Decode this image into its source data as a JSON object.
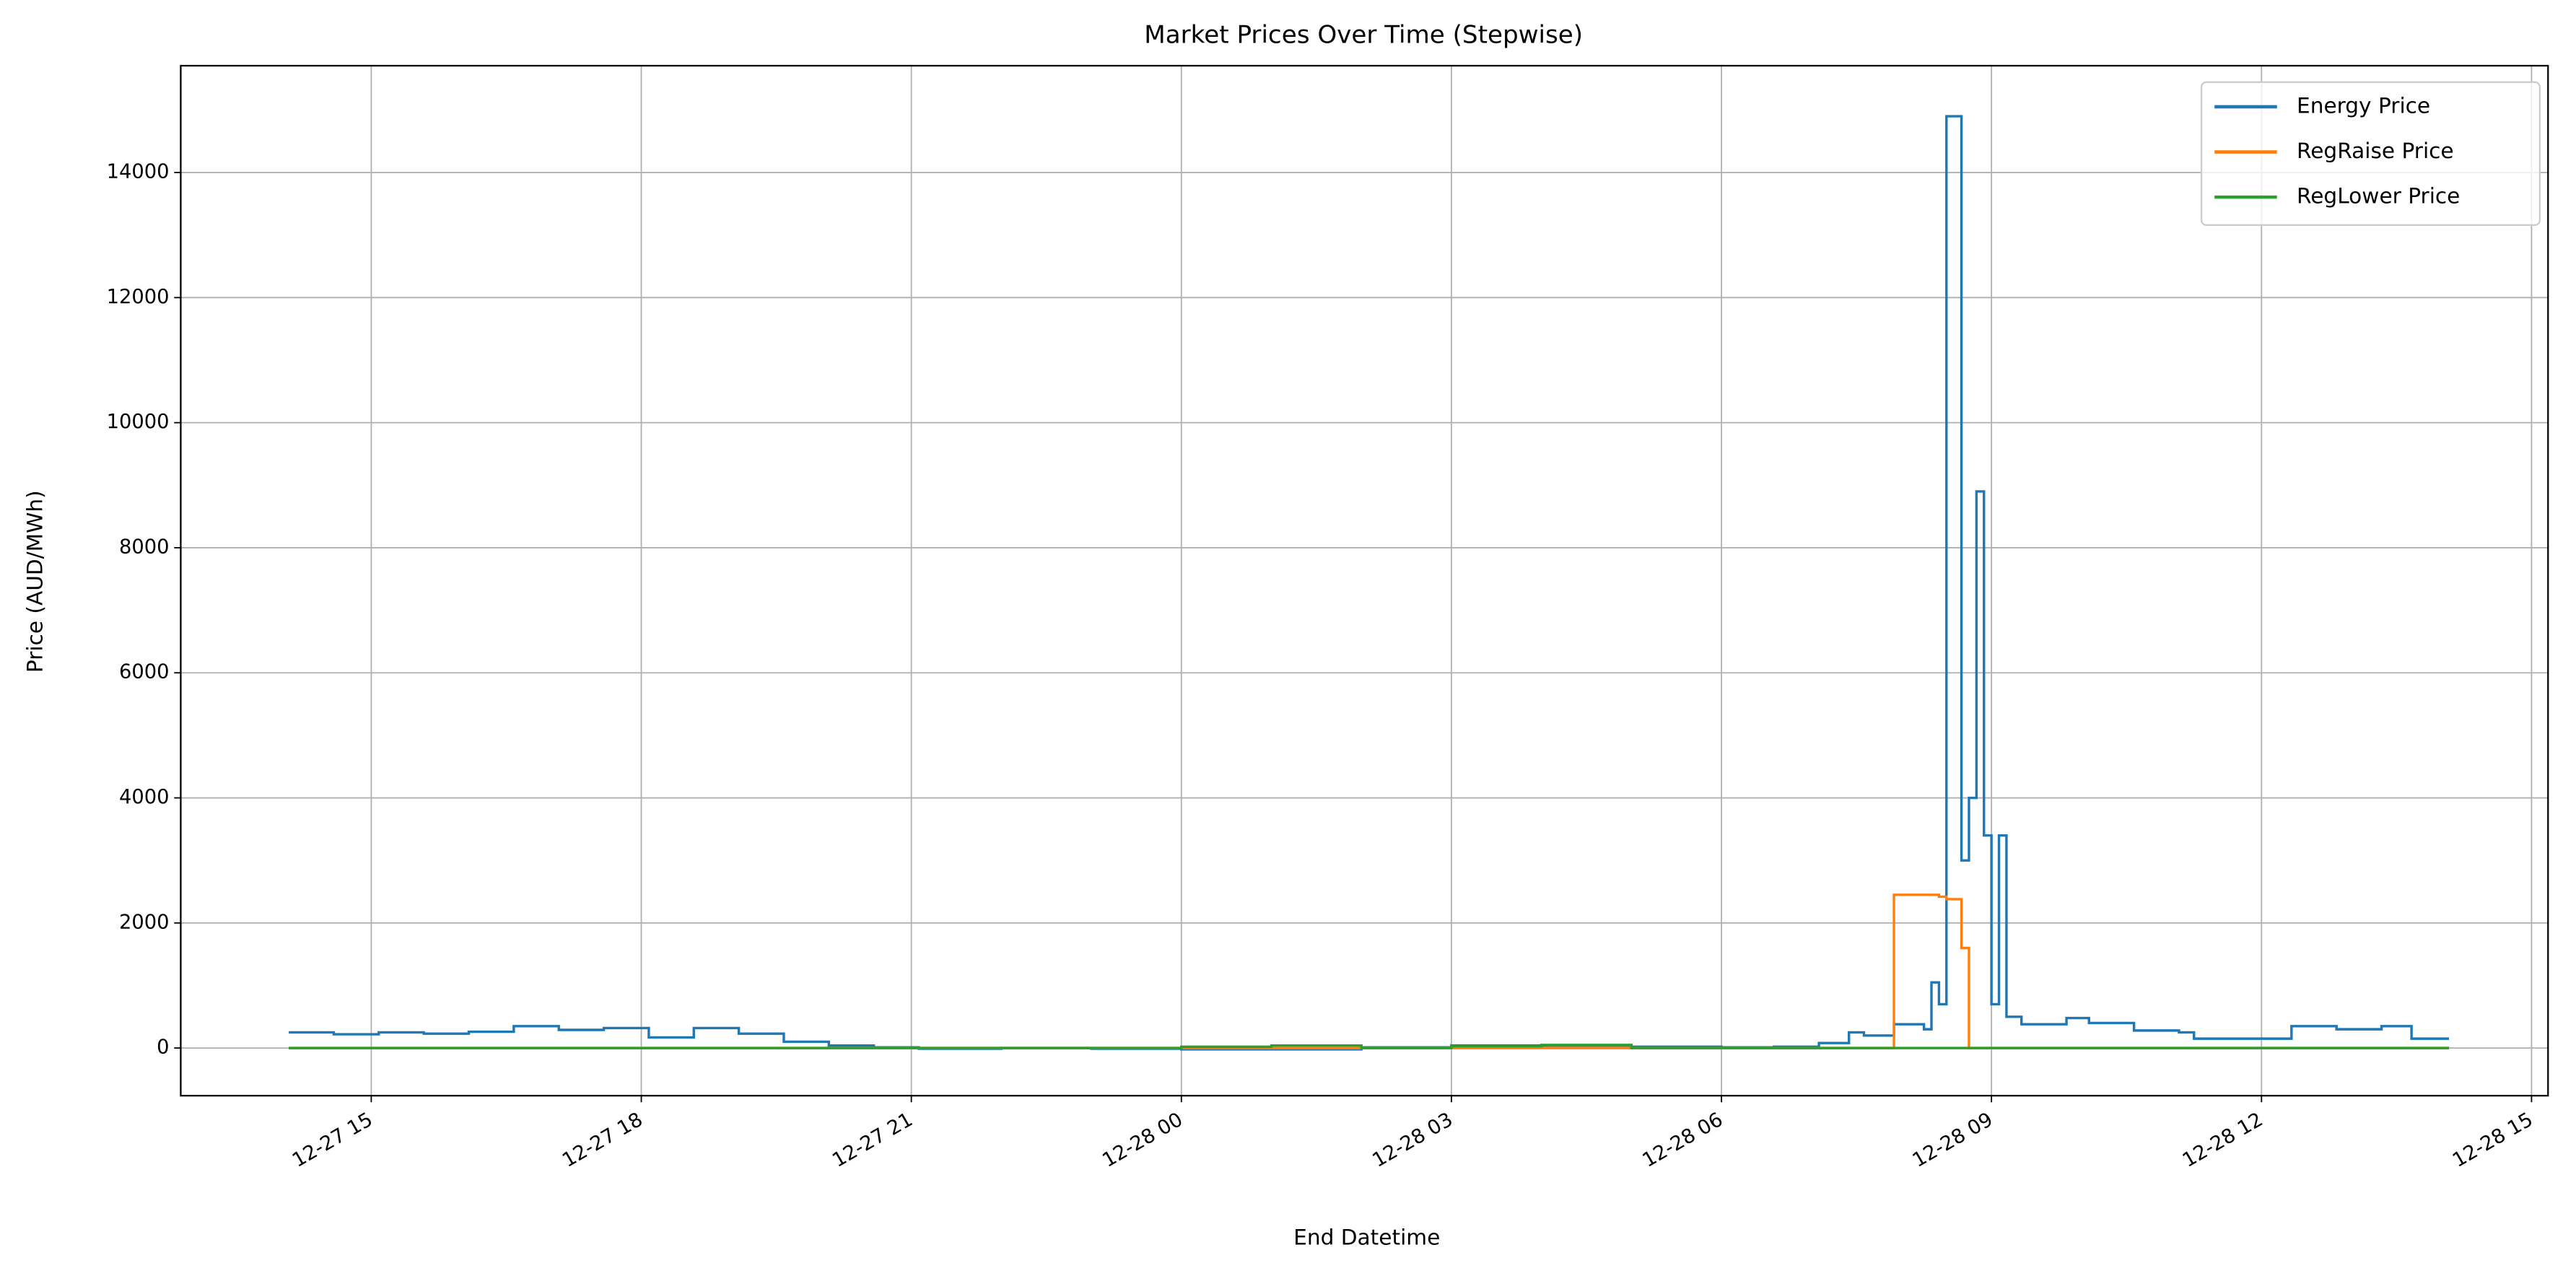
{
  "chart_data": {
    "type": "step",
    "title": "Market Prices Over Time (Stepwise)",
    "x_label": "End Datetime",
    "y_label": "Price (AUD/MWh)",
    "x": [
      "12-27 14:05",
      "12-27 14:35",
      "12-27 15:05",
      "12-27 15:35",
      "12-27 16:05",
      "12-27 16:35",
      "12-27 17:05",
      "12-27 17:35",
      "12-27 18:05",
      "12-27 18:35",
      "12-27 19:05",
      "12-27 19:35",
      "12-27 20:05",
      "12-27 20:35",
      "12-27 21:05",
      "12-27 22:00",
      "12-27 23:00",
      "12-28 00:00",
      "12-28 01:00",
      "12-28 02:00",
      "12-28 03:00",
      "12-28 04:00",
      "12-28 05:00",
      "12-28 06:00",
      "12-28 06:35",
      "12-28 07:05",
      "12-28 07:25",
      "12-28 07:35",
      "12-28 07:55",
      "12-28 08:15",
      "12-28 08:20",
      "12-28 08:25",
      "12-28 08:30",
      "12-28 08:40",
      "12-28 08:45",
      "12-28 08:50",
      "12-28 08:55",
      "12-28 09:00",
      "12-28 09:05",
      "12-28 09:10",
      "12-28 09:20",
      "12-28 09:50",
      "12-28 10:05",
      "12-28 10:35",
      "12-28 11:05",
      "12-28 11:15",
      "12-28 12:20",
      "12-28 12:50",
      "12-28 13:20",
      "12-28 13:40",
      "12-28 14:05"
    ],
    "series": [
      {
        "name": "Energy Price",
        "color": "#1f77b4",
        "values": [
          250,
          220,
          250,
          230,
          260,
          350,
          290,
          320,
          170,
          320,
          230,
          100,
          40,
          10,
          -10,
          0,
          -10,
          -20,
          -20,
          10,
          40,
          40,
          20,
          10,
          20,
          80,
          250,
          200,
          380,
          300,
          1050,
          700,
          14900,
          3000,
          4000,
          8900,
          3400,
          700,
          3400,
          500,
          380,
          480,
          400,
          280,
          250,
          150,
          350,
          300,
          350,
          150,
          150
        ]
      },
      {
        "name": "RegRaise Price",
        "color": "#ff7f0e",
        "values": [
          0,
          0,
          0,
          0,
          0,
          0,
          0,
          0,
          0,
          0,
          0,
          0,
          0,
          0,
          0,
          0,
          0,
          0,
          0,
          0,
          0,
          0,
          0,
          0,
          0,
          0,
          0,
          0,
          2450,
          2450,
          2450,
          2420,
          2380,
          1600,
          0,
          0,
          0,
          0,
          0,
          0,
          0,
          0,
          0,
          0,
          0,
          0,
          0,
          0,
          0,
          0,
          0
        ]
      },
      {
        "name": "RegLower Price",
        "color": "#2ca02c",
        "values": [
          0,
          0,
          0,
          0,
          0,
          0,
          0,
          0,
          0,
          0,
          0,
          0,
          0,
          0,
          0,
          0,
          0,
          20,
          40,
          0,
          30,
          50,
          0,
          0,
          0,
          0,
          0,
          0,
          0,
          0,
          0,
          0,
          0,
          0,
          0,
          0,
          0,
          0,
          0,
          0,
          0,
          0,
          0,
          0,
          0,
          0,
          0,
          0,
          0,
          0,
          0
        ]
      }
    ],
    "xlim": [
      "12-27 12:53",
      "12-28 15:11"
    ],
    "xticks": [
      {
        "value": "12-27 15:00",
        "label": "12-27 15"
      },
      {
        "value": "12-27 18:00",
        "label": "12-27 18"
      },
      {
        "value": "12-27 21:00",
        "label": "12-27 21"
      },
      {
        "value": "12-28 00:00",
        "label": "12-28 00"
      },
      {
        "value": "12-28 03:00",
        "label": "12-28 03"
      },
      {
        "value": "12-28 06:00",
        "label": "12-28 06"
      },
      {
        "value": "12-28 09:00",
        "label": "12-28 09"
      },
      {
        "value": "12-28 12:00",
        "label": "12-28 12"
      },
      {
        "value": "12-28 15:00",
        "label": "12-28 15"
      }
    ],
    "ylim": [
      -762,
      15708
    ],
    "yticks": [
      0,
      2000,
      4000,
      6000,
      8000,
      10000,
      12000,
      14000
    ],
    "grid": true,
    "legend": "upper right"
  }
}
